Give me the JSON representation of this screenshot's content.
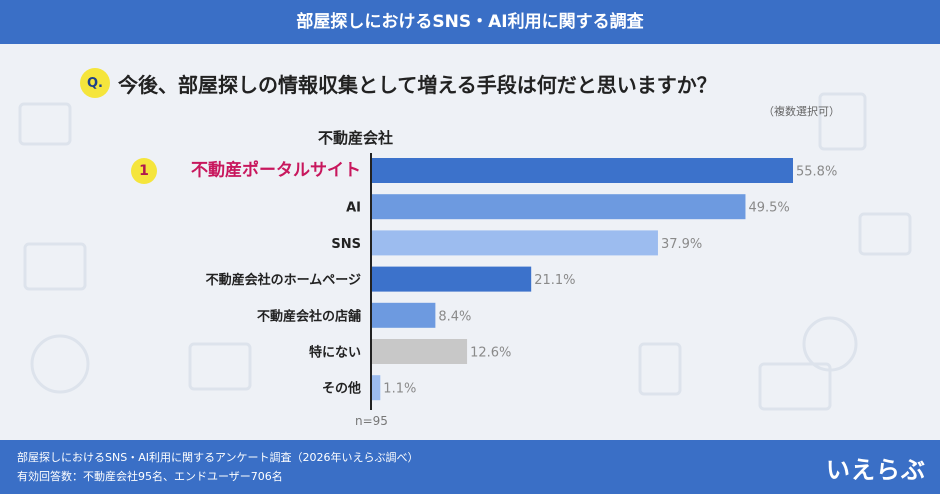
{
  "header": {
    "title": "部屋探しにおけるSNS・AI利用に関する調査"
  },
  "question": {
    "badge": "Q.",
    "text": "今後、部屋探しの情報収集として増える手段は何だと思いますか？",
    "note": "（複数選択可）"
  },
  "group_title": "不動産会社",
  "rank_badge": "1",
  "n_label": "n=95",
  "footer": {
    "line1": "部屋探しにおけるSNS・AI利用に関するアンケート調査（2026年いえらぶ調べ）",
    "line2": "有効回答数：不動産会社95名、エンドユーザー706名"
  },
  "logo": "いえらぶ",
  "colors": {
    "header_bg": "#3a6fc6",
    "highlight_text": "#c8175d",
    "badge_yellow": "#f5e53c"
  },
  "chart_data": {
    "type": "bar",
    "orientation": "horizontal",
    "categories": [
      "不動産ポータルサイト",
      "AI",
      "SNS",
      "不動産会社のホームページ",
      "不動産会社の店舗",
      "特にない",
      "その他"
    ],
    "values": [
      55.8,
      49.5,
      37.9,
      21.1,
      8.4,
      12.6,
      1.1
    ],
    "value_suffix": "%",
    "bar_colors": [
      "#3c72cb",
      "#6d9ae0",
      "#9cbcef",
      "#3c72cb",
      "#6d9ae0",
      "#c8c8c8",
      "#9cbcef"
    ],
    "highlight_index": 0,
    "xlim": [
      0,
      60
    ],
    "grid": false
  }
}
